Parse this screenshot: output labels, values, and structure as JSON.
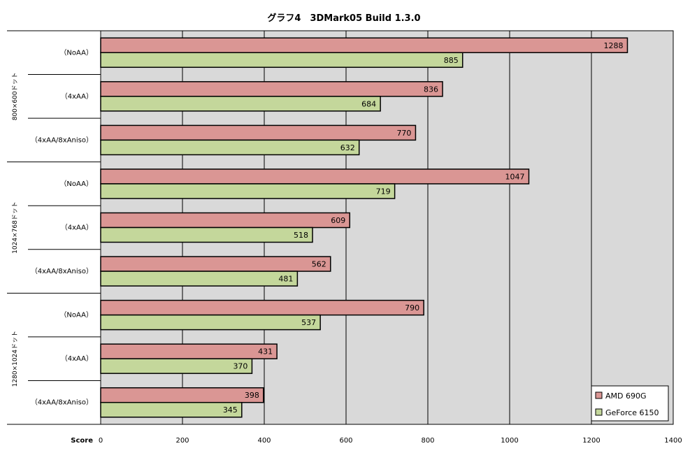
{
  "chart_data": {
    "type": "bar",
    "orientation": "horizontal",
    "title": "グラフ4　3DMark05 Build 1.3.0",
    "xlabel": "Score",
    "xlim": [
      0,
      1400
    ],
    "xticks": [
      0,
      200,
      400,
      600,
      800,
      1000,
      1200,
      1400
    ],
    "grid": true,
    "legend_position": "bottom-right",
    "colors": {
      "AMD 690G": "#da9694",
      "GeForce 6150": "#c4d79b",
      "plot_bg": "#d9d9d9"
    },
    "groups": [
      {
        "label": "800×600ドット",
        "categories": [
          "（NoAA）",
          "（4xAA）",
          "（4xAA/8xAniso）"
        ],
        "series": [
          {
            "name": "AMD 690G",
            "values": [
              1288,
              836,
              770
            ]
          },
          {
            "name": "GeForce 6150",
            "values": [
              885,
              684,
              632
            ]
          }
        ]
      },
      {
        "label": "1024×768ドット",
        "categories": [
          "（NoAA）",
          "（4xAA）",
          "（4xAA/8xAniso）"
        ],
        "series": [
          {
            "name": "AMD 690G",
            "values": [
              1047,
              609,
              562
            ]
          },
          {
            "name": "GeForce 6150",
            "values": [
              719,
              518,
              481
            ]
          }
        ]
      },
      {
        "label": "1280×1024ドット",
        "categories": [
          "（NoAA）",
          "（4xAA）",
          "（4xAA/8xAniso）"
        ],
        "series": [
          {
            "name": "AMD 690G",
            "values": [
              790,
              431,
              398
            ]
          },
          {
            "name": "GeForce 6150",
            "values": [
              537,
              370,
              345
            ]
          }
        ]
      }
    ]
  }
}
